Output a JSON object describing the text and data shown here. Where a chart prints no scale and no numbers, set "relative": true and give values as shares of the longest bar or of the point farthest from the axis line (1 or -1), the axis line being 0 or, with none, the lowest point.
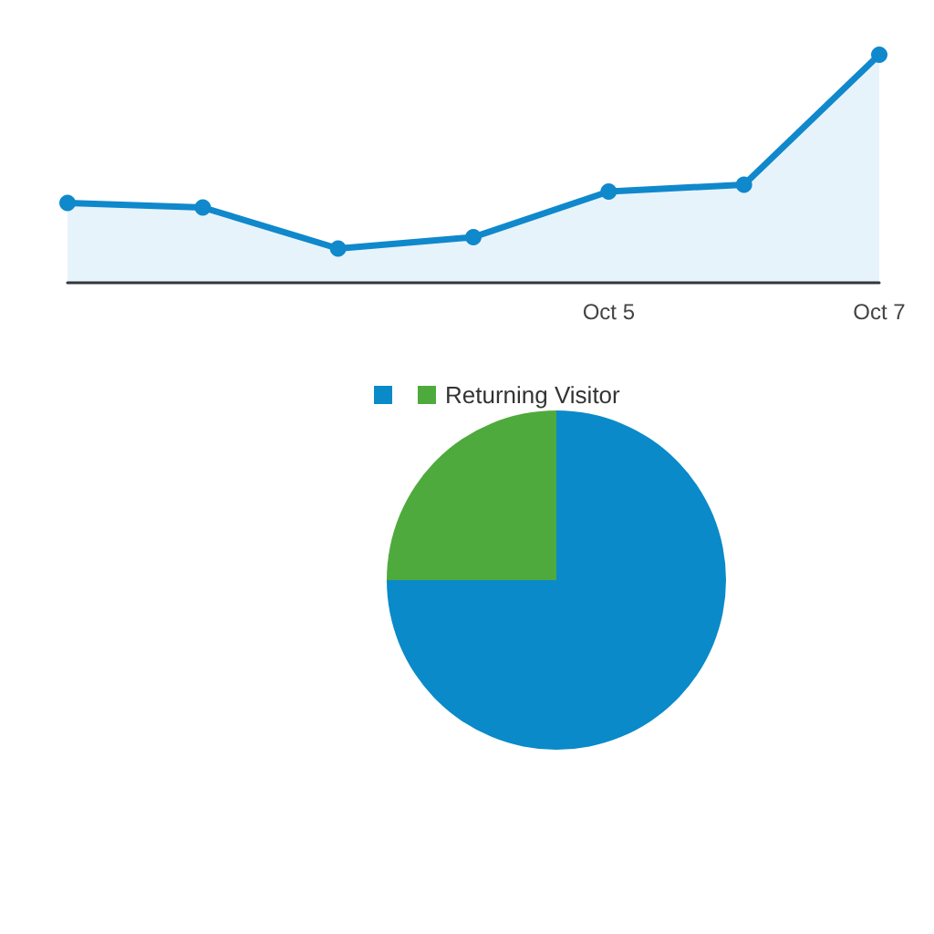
{
  "chart_data": [
    {
      "type": "area",
      "categories": [
        null,
        null,
        null,
        null,
        "Oct 5",
        null,
        "Oct 7"
      ],
      "relative": true,
      "series": [
        {
          "color": "#1088cc",
          "values": [
            0.35,
            0.33,
            0.15,
            0.2,
            0.4,
            0.43,
            1
          ]
        }
      ],
      "marker": "circle",
      "legend": false
    },
    {
      "type": "pie",
      "categories": [
        null,
        "Returning Visitor"
      ],
      "values": [
        75,
        25
      ],
      "colors": [
        "#0a8ac9",
        "#4eaa3c"
      ],
      "legend": "top"
    }
  ]
}
